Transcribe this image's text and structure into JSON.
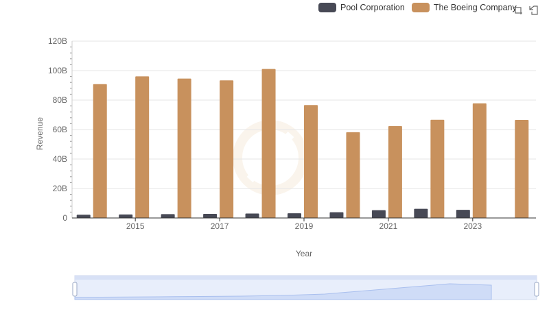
{
  "legend": {
    "items": [
      {
        "label": "Pool Corporation",
        "color": "#474955"
      },
      {
        "label": "The Boeing Company",
        "color": "#c8915d"
      }
    ]
  },
  "toolbar": {
    "icons": [
      "brush-select-icon",
      "reset-icon"
    ]
  },
  "chart_data": {
    "type": "bar",
    "xlabel": "Year",
    "ylabel": "Revenue",
    "ylim": [
      0,
      120
    ],
    "y_unit": "B",
    "y_ticks": [
      "0",
      "20B",
      "40B",
      "60B",
      "80B",
      "100B",
      "120B"
    ],
    "categories": [
      "2014",
      "2015",
      "2016",
      "2017",
      "2018",
      "2019",
      "2020",
      "2021",
      "2022",
      "2023",
      "2024"
    ],
    "x_tick_labels": [
      "2015",
      "2017",
      "2019",
      "2021",
      "2023"
    ],
    "grid": true,
    "legend_position": "top-right",
    "series": [
      {
        "name": "Pool Corporation",
        "color": "#474955",
        "values": [
          2.2,
          2.4,
          2.6,
          2.8,
          3.0,
          3.2,
          3.9,
          5.3,
          6.2,
          5.5,
          null
        ]
      },
      {
        "name": "The Boeing Company",
        "color": "#c8915d",
        "values": [
          90.8,
          96.1,
          94.6,
          93.4,
          101.1,
          76.6,
          58.2,
          62.3,
          66.6,
          77.8,
          66.5
        ]
      }
    ]
  },
  "data_zoom": {
    "range_start_percent": 0,
    "range_end_percent": 100
  }
}
